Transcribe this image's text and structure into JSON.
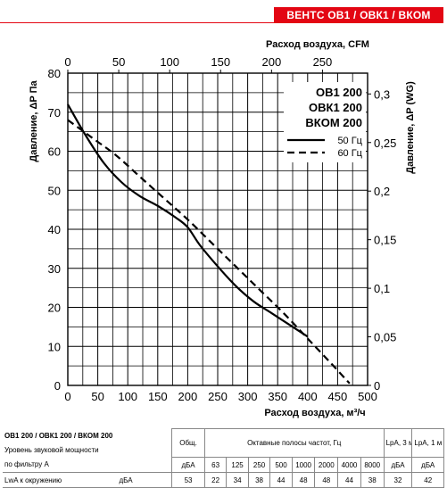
{
  "brand": "ВЕНТС ОВ1 / ОВК1 / ВКОМ",
  "chart_data": {
    "type": "line",
    "xlabel": "Расход воздуха, м³/ч",
    "x2label": "Расход воздуха, CFM",
    "ylabel": "Давление, ΔP Па",
    "y2label": "Давление, ΔP (WG)",
    "xlim": [
      0,
      500
    ],
    "ylim": [
      0,
      80
    ],
    "x2lim": [
      0,
      294.3
    ],
    "y2lim": [
      0,
      0.3214
    ],
    "xticks": [
      "0",
      "50",
      "100",
      "150",
      "200",
      "250",
      "300",
      "350",
      "400",
      "450",
      "500"
    ],
    "yticks": [
      "0",
      "10",
      "20",
      "30",
      "40",
      "50",
      "60",
      "70",
      "80"
    ],
    "x2ticks": [
      "0",
      "50",
      "100",
      "150",
      "200",
      "250"
    ],
    "y2ticks": [
      "0",
      "0,05",
      "0,1",
      "0,15",
      "0,2",
      "0,25",
      "0,3"
    ],
    "grid": true,
    "legend_position": "top-right",
    "legend_title": [
      "ОВ1 200",
      "ОВК1 200",
      "ВКОМ 200"
    ],
    "series": [
      {
        "name": "50 Гц",
        "style": "solid",
        "x": [
          0,
          30,
          60,
          90,
          120,
          150,
          180,
          200,
          220,
          250,
          280,
          310,
          340,
          370,
          400
        ],
        "y": [
          72,
          64,
          57,
          52,
          48.5,
          46,
          43,
          40.5,
          36,
          30.5,
          25.5,
          21.5,
          18.5,
          15.5,
          12.5
        ]
      },
      {
        "name": "60 Гц",
        "style": "dashed",
        "x": [
          0,
          40,
          80,
          120,
          160,
          200,
          240,
          280,
          320,
          360,
          400,
          440,
          470
        ],
        "y": [
          68,
          63.5,
          59,
          53.5,
          48,
          42.5,
          36.5,
          30.5,
          24.5,
          18.5,
          12,
          5.5,
          0.5
        ]
      }
    ]
  },
  "table": {
    "model": "ОВ1 200 / ОВК1 200 / ВКОМ 200",
    "row2_label": "Уровень звуковой мощности",
    "row3_label": "по фильтру А",
    "row4_label": "LwA к окружению",
    "row4_unit": "дБА",
    "total_header": "Общ.",
    "total_unit": "дБА",
    "octave_header": "Октавные полосы частот, Гц",
    "freqs": [
      "63",
      "125",
      "250",
      "500",
      "1000",
      "2000",
      "4000",
      "8000"
    ],
    "lpa3_header": "LpA, 3 м",
    "lpa1_header": "LpA, 1 м",
    "lpa_unit": "дБА",
    "total_value": "53",
    "octave_values": [
      "22",
      "34",
      "38",
      "44",
      "48",
      "48",
      "44",
      "38"
    ],
    "lpa3_value": "32",
    "lpa1_value": "42"
  }
}
